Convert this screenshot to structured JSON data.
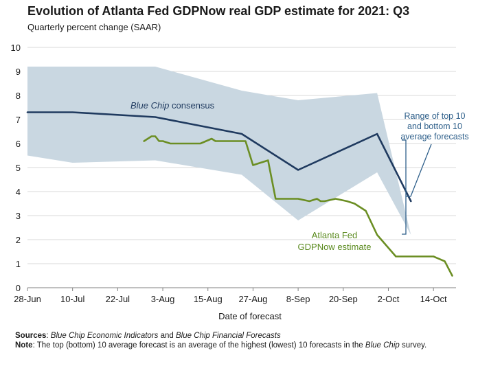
{
  "title": "Evolution of Atlanta Fed GDPNow real GDP estimate for 2021: Q3",
  "subtitle": "Quarterly percent change (SAAR)",
  "colors": {
    "band": "#c9d7e1",
    "blue_chip": "#1f3a5f",
    "gdpnow": "#6b8e23",
    "grid": "#d9d9d9",
    "annotation_blue": "#2e5f8a",
    "annotation_green": "#5a8a1e"
  },
  "chart_data": {
    "type": "line",
    "xlabel": "Date of forecast",
    "ylabel": "",
    "ylim": [
      0,
      10
    ],
    "yticks": [
      "0",
      "1",
      "2",
      "3",
      "4",
      "5",
      "6",
      "7",
      "8",
      "9",
      "10"
    ],
    "xlim": [
      "2021-06-28",
      "2021-10-20"
    ],
    "xticks": [
      {
        "date": "2021-06-28",
        "label": "28-Jun"
      },
      {
        "date": "2021-07-10",
        "label": "10-Jul"
      },
      {
        "date": "2021-07-22",
        "label": "22-Jul"
      },
      {
        "date": "2021-08-03",
        "label": "3-Aug"
      },
      {
        "date": "2021-08-15",
        "label": "15-Aug"
      },
      {
        "date": "2021-08-27",
        "label": "27-Aug"
      },
      {
        "date": "2021-09-08",
        "label": "8-Sep"
      },
      {
        "date": "2021-09-20",
        "label": "20-Sep"
      },
      {
        "date": "2021-10-02",
        "label": "2-Oct"
      },
      {
        "date": "2021-10-14",
        "label": "14-Oct"
      }
    ],
    "grid": true,
    "legend": "none",
    "band": {
      "name": "Range of top 10 and bottom 10 average forecasts",
      "dates": [
        "2021-06-28",
        "2021-07-10",
        "2021-08-01",
        "2021-08-24",
        "2021-09-08",
        "2021-09-29",
        "2021-10-08"
      ],
      "upper": [
        9.2,
        9.2,
        9.2,
        8.2,
        7.8,
        8.1,
        2.2
      ],
      "lower": [
        5.5,
        5.2,
        5.3,
        4.7,
        2.8,
        4.8,
        2.2
      ]
    },
    "series": [
      {
        "name": "Blue Chip consensus",
        "dates": [
          "2021-06-28",
          "2021-07-10",
          "2021-08-01",
          "2021-08-24",
          "2021-09-08",
          "2021-09-29",
          "2021-10-08"
        ],
        "values": [
          7.3,
          7.3,
          7.1,
          6.4,
          4.9,
          6.4,
          3.6
        ]
      },
      {
        "name": "Atlanta Fed GDPNow estimate",
        "dates": [
          "2021-07-29",
          "2021-07-31",
          "2021-08-01",
          "2021-08-02",
          "2021-08-03",
          "2021-08-05",
          "2021-08-13",
          "2021-08-16",
          "2021-08-17",
          "2021-08-25",
          "2021-08-27",
          "2021-08-31",
          "2021-09-02",
          "2021-09-08",
          "2021-09-11",
          "2021-09-13",
          "2021-09-14",
          "2021-09-15",
          "2021-09-18",
          "2021-09-21",
          "2021-09-23",
          "2021-09-26",
          "2021-09-29",
          "2021-10-04",
          "2021-10-08",
          "2021-10-14",
          "2021-10-17",
          "2021-10-19"
        ],
        "values": [
          6.1,
          6.3,
          6.3,
          6.1,
          6.1,
          6.0,
          6.0,
          6.2,
          6.1,
          6.1,
          5.1,
          5.3,
          3.7,
          3.7,
          3.6,
          3.7,
          3.6,
          3.6,
          3.7,
          3.6,
          3.5,
          3.2,
          2.2,
          1.3,
          1.3,
          1.3,
          1.1,
          0.5
        ]
      }
    ],
    "annotations": [
      {
        "text_html_key": "blue_chip_label"
      },
      {
        "text": "Range of top 10 and bottom 10 average forecasts"
      },
      {
        "text": "Atlanta Fed GDPNow estimate"
      }
    ]
  },
  "labels": {
    "blue_chip_label_italic": "Blue Chip",
    "blue_chip_label_rest": " consensus",
    "range_line1": "Range of top 10",
    "range_line2": "and bottom 10",
    "range_line3": "average forecasts",
    "gdpnow_line1": "Atlanta Fed",
    "gdpnow_line2": "GDPNow estimate"
  },
  "notes": {
    "sources_label": "Sources",
    "sources_sep": ": ",
    "sources_text_1": "Blue Chip Economic Indicators",
    "sources_text_2": " and ",
    "sources_text_3": "Blue Chip Financial Forecasts",
    "note_label": "Note",
    "note_text_1": ": The top (bottom) 10 average forecast is an average of the highest (lowest) 10 forecasts in the ",
    "note_text_2": "Blue Chip",
    "note_text_3": " survey."
  }
}
